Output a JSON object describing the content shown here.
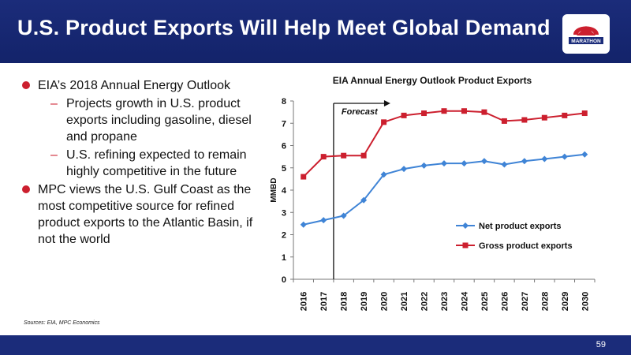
{
  "header": {
    "title": "U.S. Product Exports Will Help Meet Global Demand",
    "brand_color": "#1b2c7a",
    "accent_color": "#cc1f2e"
  },
  "logo": {
    "icon": "marathon-logo-icon",
    "text": "MARATHON"
  },
  "bullets": [
    {
      "text": "EIA’s 2018 Annual Energy Outlook",
      "subitems": [
        "Projects growth in U.S. product exports including gasoline, diesel and propane",
        "U.S. refining expected to remain highly competitive in the future"
      ]
    },
    {
      "text": "MPC views the U.S. Gulf Coast as the most competitive source for refined product exports to the Atlantic Basin, if not the world",
      "subitems": []
    }
  ],
  "sources": "Sources:  EIA, MPC Economics",
  "page_number": "59",
  "chart_data": {
    "type": "line",
    "title": "EIA Annual Energy Outlook Product Exports",
    "ylabel": "MMBD",
    "xlabel": "",
    "ylim": [
      0,
      8
    ],
    "yticks": [
      0,
      1,
      2,
      3,
      4,
      5,
      6,
      7,
      8
    ],
    "categories": [
      "2016",
      "2017",
      "2018",
      "2019",
      "2020",
      "2021",
      "2022",
      "2023",
      "2024",
      "2025",
      "2026",
      "2027",
      "2028",
      "2029",
      "2030"
    ],
    "forecast": {
      "label": "Forecast",
      "start": "2018"
    },
    "series": [
      {
        "name": "Net product exports",
        "color": "#3f84d6",
        "marker": "diamond",
        "values": [
          2.45,
          2.65,
          2.85,
          3.55,
          4.7,
          4.95,
          5.1,
          5.2,
          5.2,
          5.3,
          5.15,
          5.3,
          5.4,
          5.5,
          5.6
        ]
      },
      {
        "name": "Gross product exports",
        "color": "#cc1f2e",
        "marker": "square",
        "values": [
          4.6,
          5.5,
          5.55,
          5.55,
          7.05,
          7.35,
          7.45,
          7.55,
          7.55,
          7.5,
          7.1,
          7.15,
          7.25,
          7.35,
          7.45
        ]
      }
    ],
    "legend_position": "bottom-right",
    "grid": false
  }
}
